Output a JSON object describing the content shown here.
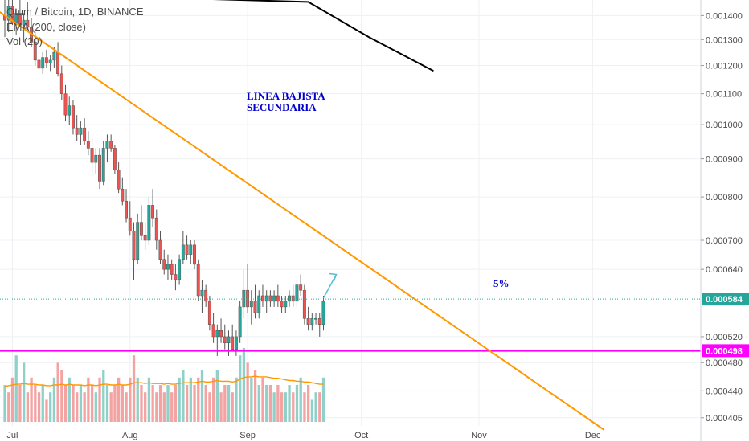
{
  "header": {
    "symbol_line": "Qtum / Bitcoin, 1D, BINANCE",
    "ema_label": "EMA (200, close)",
    "vol_label": "Vol (20)"
  },
  "annotations": {
    "trend_label_line1": "LINEA BAJISTA",
    "trend_label_line2": "SECUNDARIA",
    "target_label": "5%"
  },
  "colors": {
    "up": "#26a69a",
    "down": "#ef5350",
    "vol_up": "#8fd1c8",
    "vol_down": "#f4a3a3",
    "trendline": "#ff9800",
    "support": "#ff00ff",
    "ema": "#000000",
    "annotation_text": "#0000cc",
    "arrow": "#5bbcd6",
    "price_tag": "#26a69a"
  },
  "chart_data": {
    "type": "candlestick",
    "x_axis": {
      "ticks": [
        {
          "label": "Jul",
          "index": 2
        },
        {
          "label": "Aug",
          "index": 33
        },
        {
          "label": "Sep",
          "index": 64
        },
        {
          "label": "Oct",
          "index": 94
        },
        {
          "label": "Nov",
          "index": 125
        },
        {
          "label": "Dec",
          "index": 155
        }
      ]
    },
    "y_axis": {
      "scale": "log",
      "range": [
        0.00039,
        0.00144
      ],
      "ticks": [
        "0.001400",
        "0.001300",
        "0.001200",
        "0.001100",
        "0.001000",
        "0.000900",
        "0.000800",
        "0.000700",
        "0.000640",
        "0.000520",
        "0.000480",
        "0.000440",
        "0.000405"
      ]
    },
    "last_price": "0.000584",
    "support_level": "0.000498",
    "candles": [
      [
        0.0014,
        0.00147,
        0.00131,
        0.00138
      ],
      [
        0.00138,
        0.0015,
        0.00133,
        0.00144
      ],
      [
        0.00144,
        0.00151,
        0.00136,
        0.00137
      ],
      [
        0.00137,
        0.00143,
        0.00132,
        0.00141
      ],
      [
        0.00141,
        0.00148,
        0.00135,
        0.00136
      ],
      [
        0.00136,
        0.00141,
        0.00129,
        0.00138
      ],
      [
        0.00138,
        0.00146,
        0.00134,
        0.00135
      ],
      [
        0.00135,
        0.00139,
        0.00127,
        0.00129
      ],
      [
        0.00129,
        0.00133,
        0.0012,
        0.00122
      ],
      [
        0.00122,
        0.00126,
        0.00118,
        0.00119
      ],
      [
        0.00119,
        0.00125,
        0.00117,
        0.00123
      ],
      [
        0.00123,
        0.00126,
        0.00119,
        0.00121
      ],
      [
        0.00121,
        0.00124,
        0.00118,
        0.00122
      ],
      [
        0.00122,
        0.00127,
        0.00119,
        0.00125
      ],
      [
        0.00125,
        0.00129,
        0.00116,
        0.00117
      ],
      [
        0.00117,
        0.0012,
        0.00108,
        0.0011
      ],
      [
        0.0011,
        0.00113,
        0.00101,
        0.00103
      ],
      [
        0.00103,
        0.00109,
        0.001,
        0.00106
      ],
      [
        0.00106,
        0.00108,
        0.00097,
        0.00099
      ],
      [
        0.00099,
        0.00103,
        0.00095,
        0.00097
      ],
      [
        0.00097,
        0.00101,
        0.00094,
        0.00099
      ],
      [
        0.00099,
        0.00102,
        0.00094,
        0.00095
      ],
      [
        0.00095,
        0.00098,
        0.00091,
        0.00093
      ],
      [
        0.00093,
        0.00096,
        0.00086,
        0.00089
      ],
      [
        0.00089,
        0.00093,
        0.00086,
        0.00091
      ],
      [
        0.00091,
        0.00093,
        0.00082,
        0.00084
      ],
      [
        0.00084,
        0.00095,
        0.00083,
        0.00093
      ],
      [
        0.00093,
        0.00097,
        0.00089,
        0.00095
      ],
      [
        0.00095,
        0.00097,
        0.00092,
        0.00093
      ],
      [
        0.00093,
        0.00094,
        0.00086,
        0.00087
      ],
      [
        0.00087,
        0.00089,
        0.00081,
        0.00082
      ],
      [
        0.00082,
        0.00085,
        0.00078,
        0.00079
      ],
      [
        0.00079,
        0.00082,
        0.00074,
        0.00075
      ],
      [
        0.00075,
        0.00079,
        0.00071,
        0.00072
      ],
      [
        0.00072,
        0.00074,
        0.00062,
        0.00066
      ],
      [
        0.00066,
        0.00076,
        0.00065,
        0.00074
      ],
      [
        0.00074,
        0.00078,
        0.0007,
        0.00071
      ],
      [
        0.00071,
        0.00074,
        0.00068,
        0.0007
      ],
      [
        0.0007,
        0.0008,
        0.00069,
        0.00078
      ],
      [
        0.00078,
        0.00082,
        0.00073,
        0.00075
      ],
      [
        0.00075,
        0.00077,
        0.00068,
        0.0007
      ],
      [
        0.0007,
        0.00072,
        0.00065,
        0.00066
      ],
      [
        0.00066,
        0.00068,
        0.00063,
        0.00064
      ],
      [
        0.00064,
        0.00067,
        0.00062,
        0.00065
      ],
      [
        0.00065,
        0.00066,
        0.00062,
        0.00063
      ],
      [
        0.00063,
        0.00065,
        0.0006,
        0.00062
      ],
      [
        0.00062,
        0.00067,
        0.00061,
        0.00066
      ],
      [
        0.00066,
        0.00072,
        0.00065,
        0.00069
      ],
      [
        0.00069,
        0.00071,
        0.00066,
        0.00067
      ],
      [
        0.00067,
        0.0007,
        0.00065,
        0.00069
      ],
      [
        0.00069,
        0.0007,
        0.00064,
        0.00065
      ],
      [
        0.00065,
        0.00066,
        0.00058,
        0.00059
      ],
      [
        0.00059,
        0.00062,
        0.00056,
        0.0006
      ],
      [
        0.0006,
        0.00061,
        0.00057,
        0.00058
      ],
      [
        0.00058,
        0.00059,
        0.00053,
        0.00054
      ],
      [
        0.00054,
        0.00056,
        0.00051,
        0.00052
      ],
      [
        0.00052,
        0.00054,
        0.00049,
        0.00053
      ],
      [
        0.00053,
        0.00055,
        0.00051,
        0.00052
      ],
      [
        0.00052,
        0.00054,
        0.0005,
        0.00051
      ],
      [
        0.00051,
        0.00053,
        0.00049,
        0.00052
      ],
      [
        0.00052,
        0.00054,
        0.0005,
        0.0005
      ],
      [
        0.0005,
        0.00053,
        0.00049,
        0.00052
      ],
      [
        0.00052,
        0.00058,
        0.00051,
        0.00057
      ],
      [
        0.00057,
        0.00064,
        0.00055,
        0.0006
      ],
      [
        0.0006,
        0.00065,
        0.00056,
        0.00057
      ],
      [
        0.00057,
        0.0006,
        0.00054,
        0.00058
      ],
      [
        0.00058,
        0.00061,
        0.00055,
        0.00056
      ],
      [
        0.00056,
        0.0006,
        0.00055,
        0.00059
      ],
      [
        0.00059,
        0.00061,
        0.00057,
        0.00058
      ],
      [
        0.00058,
        0.0006,
        0.00056,
        0.00059
      ],
      [
        0.00059,
        0.0006,
        0.00057,
        0.00058
      ],
      [
        0.00058,
        0.0006,
        0.00057,
        0.00059
      ],
      [
        0.00059,
        0.00061,
        0.00057,
        0.00058
      ],
      [
        0.00058,
        0.00059,
        0.00056,
        0.00057
      ],
      [
        0.00057,
        0.00059,
        0.00056,
        0.00058
      ],
      [
        0.00058,
        0.0006,
        0.00057,
        0.00059
      ],
      [
        0.00059,
        0.00061,
        0.00057,
        0.00058
      ],
      [
        0.00058,
        0.00062,
        0.00057,
        0.00061
      ],
      [
        0.00061,
        0.00063,
        0.00059,
        0.0006
      ],
      [
        0.0006,
        0.00061,
        0.00054,
        0.00055
      ],
      [
        0.00055,
        0.00057,
        0.00053,
        0.00054
      ],
      [
        0.00054,
        0.00056,
        0.00053,
        0.00055
      ],
      [
        0.00055,
        0.00056,
        0.00054,
        0.00055
      ],
      [
        0.00055,
        0.00056,
        0.00052,
        0.00054
      ],
      [
        0.00054,
        0.00059,
        0.00053,
        0.00058
      ]
    ],
    "volume_up_flags": [
      1,
      0,
      0,
      1,
      0,
      1,
      0,
      0,
      0,
      0,
      1,
      0,
      1,
      1,
      0,
      0,
      0,
      1,
      0,
      0,
      1,
      0,
      0,
      0,
      1,
      0,
      1,
      1,
      0,
      0,
      0,
      0,
      0,
      0,
      0,
      1,
      0,
      0,
      1,
      0,
      0,
      0,
      0,
      1,
      0,
      0,
      1,
      1,
      0,
      1,
      0,
      0,
      1,
      0,
      0,
      0,
      1,
      0,
      0,
      1,
      0,
      1,
      1,
      1,
      0,
      1,
      0,
      1,
      0,
      1,
      0,
      1,
      0,
      0,
      1,
      1,
      0,
      1,
      1,
      0,
      0,
      1,
      1,
      0,
      1
    ],
    "volumes": [
      5,
      4,
      6,
      9,
      5,
      8,
      4,
      6,
      5,
      4,
      5,
      3,
      4,
      6,
      8,
      7,
      5,
      6,
      5,
      4,
      5,
      4,
      6,
      5,
      4,
      6,
      7,
      5,
      4,
      5,
      6,
      5,
      4,
      6,
      9,
      6,
      5,
      4,
      6,
      5,
      4,
      5,
      4,
      5,
      4,
      5,
      6,
      7,
      5,
      6,
      5,
      6,
      7,
      5,
      4,
      6,
      7,
      4,
      5,
      5,
      4,
      6,
      9,
      10,
      8,
      6,
      7,
      5,
      6,
      5,
      5,
      4,
      5,
      4,
      4,
      5,
      4,
      5,
      6,
      4,
      5,
      3,
      4,
      4,
      6
    ],
    "volume_ma": [
      4.8,
      4.9,
      5.0,
      5.1,
      5.1,
      5.2,
      5.1,
      5.1,
      5.1,
      5.0,
      5.0,
      4.9,
      4.9,
      5.0,
      5.0,
      5.1,
      5.0,
      5.1,
      5.0,
      5.0,
      5.0,
      4.9,
      5.0,
      5.0,
      4.9,
      5.0,
      5.1,
      5.1,
      5.0,
      5.0,
      5.1,
      5.0,
      5.0,
      5.1,
      5.3,
      5.3,
      5.3,
      5.2,
      5.3,
      5.2,
      5.2,
      5.2,
      5.1,
      5.2,
      5.1,
      5.1,
      5.2,
      5.3,
      5.3,
      5.3,
      5.3,
      5.4,
      5.5,
      5.4,
      5.4,
      5.5,
      5.6,
      5.5,
      5.5,
      5.5,
      5.4,
      5.5,
      5.8,
      6.0,
      6.1,
      6.1,
      6.2,
      6.1,
      6.1,
      6.1,
      6.0,
      5.9,
      5.9,
      5.8,
      5.7,
      5.6,
      5.6,
      5.5,
      5.5,
      5.4,
      5.4,
      5.3,
      5.2,
      5.1,
      5.1
    ],
    "ema200": [
      [
        0.0015,
        -1
      ],
      [
        0.00146,
        80
      ],
      [
        0.00131,
        96
      ],
      [
        0.00118,
        113
      ]
    ],
    "trendline": [
      [
        0.00147,
        -6
      ],
      [
        0.00039,
        158
      ]
    ],
    "arrow_target": 0.00063
  }
}
